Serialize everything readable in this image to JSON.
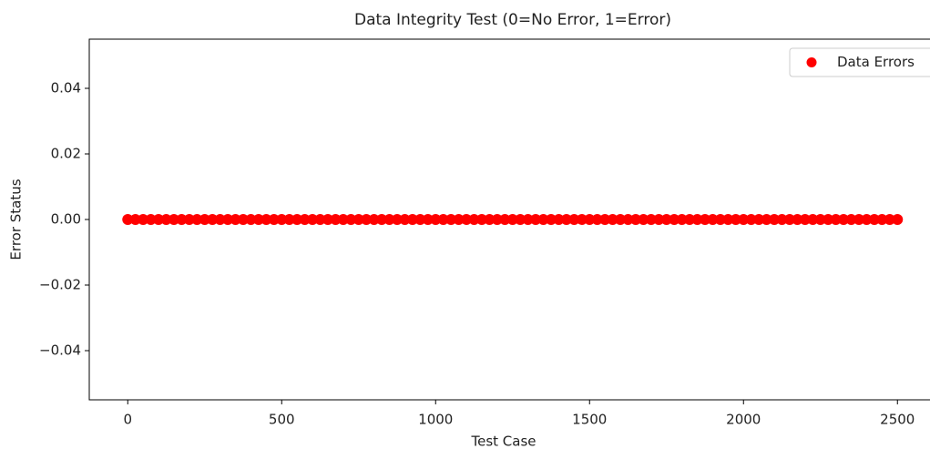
{
  "chart_data": {
    "type": "scatter",
    "title": "Data Integrity Test (0=No Error, 1=Error)",
    "x_label": "Test Case",
    "y_label": "Error Status",
    "x": [
      0,
      25,
      50,
      75,
      100,
      125,
      150,
      175,
      200,
      225,
      250,
      275,
      300,
      325,
      350,
      375,
      400,
      425,
      450,
      475,
      500,
      525,
      550,
      575,
      600,
      625,
      650,
      675,
      700,
      725,
      750,
      775,
      800,
      825,
      850,
      875,
      900,
      925,
      950,
      975,
      1000,
      1025,
      1050,
      1075,
      1100,
      1125,
      1150,
      1175,
      1200,
      1225,
      1250,
      1275,
      1300,
      1325,
      1350,
      1375,
      1400,
      1425,
      1450,
      1475,
      1500,
      1525,
      1550,
      1575,
      1600,
      1625,
      1650,
      1675,
      1700,
      1725,
      1750,
      1775,
      1800,
      1825,
      1850,
      1875,
      1900,
      1925,
      1950,
      1975,
      2000,
      2025,
      2050,
      2075,
      2100,
      2125,
      2150,
      2175,
      2200,
      2225,
      2250,
      2275,
      2300,
      2325,
      2350,
      2375,
      2400,
      2425,
      2450,
      2475,
      2500
    ],
    "series": [
      {
        "name": "Data Errors",
        "color": "#ff0000",
        "values": [
          0,
          0,
          0,
          0,
          0,
          0,
          0,
          0,
          0,
          0,
          0,
          0,
          0,
          0,
          0,
          0,
          0,
          0,
          0,
          0,
          0,
          0,
          0,
          0,
          0,
          0,
          0,
          0,
          0,
          0,
          0,
          0,
          0,
          0,
          0,
          0,
          0,
          0,
          0,
          0,
          0,
          0,
          0,
          0,
          0,
          0,
          0,
          0,
          0,
          0,
          0,
          0,
          0,
          0,
          0,
          0,
          0,
          0,
          0,
          0,
          0,
          0,
          0,
          0,
          0,
          0,
          0,
          0,
          0,
          0,
          0,
          0,
          0,
          0,
          0,
          0,
          0,
          0,
          0,
          0,
          0,
          0,
          0,
          0,
          0,
          0,
          0,
          0,
          0,
          0,
          0,
          0,
          0,
          0,
          0,
          0,
          0,
          0,
          0,
          0,
          0
        ]
      }
    ],
    "xlim": [
      -125,
      2625
    ],
    "xticks": [
      0,
      500,
      1000,
      1500,
      2000,
      2500
    ],
    "ylim": [
      -0.055,
      0.055
    ],
    "yticks": [
      {
        "value": -0.04,
        "label": "−0.04"
      },
      {
        "value": -0.02,
        "label": "−0.02"
      },
      {
        "value": 0,
        "label": "0.00"
      },
      0.02,
      0.04
    ],
    "legend": "upper right"
  }
}
